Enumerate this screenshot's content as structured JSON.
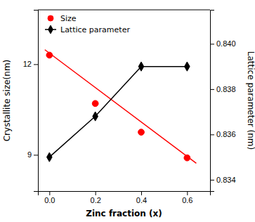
{
  "chart_data": {
    "type": "line",
    "xlabel": "Zinc fraction (x)",
    "ylabel": "Crystallite size(nm)",
    "y2label": "Lattice parameter (nm)",
    "xlim": [
      -0.05,
      0.7
    ],
    "xticks": [
      {
        "value": 0.0,
        "label": "0.0"
      },
      0.2,
      0.4,
      0.6
    ],
    "ylim": [
      7.8,
      13.8
    ],
    "yticks": [
      9,
      12
    ],
    "y2lim": [
      0.8335,
      0.8415
    ],
    "y2ticks": [
      0.834,
      0.836,
      0.838,
      {
        "value": 0.84,
        "label": "0.840"
      }
    ],
    "grid": false,
    "legend": "upper left",
    "series": [
      {
        "type": "line",
        "color": "#FF0000",
        "x": [
          -0.02,
          0.64
        ],
        "values": [
          12.48,
          8.72
        ]
      },
      {
        "name": "Size",
        "type": "scatter",
        "marker": "circle",
        "color": "#FF0000",
        "x": [
          0.0,
          0.2,
          0.4,
          0.6
        ],
        "values": [
          12.3,
          10.7,
          9.75,
          8.9
        ]
      },
      {
        "name": "Lattice parameter",
        "type": "line",
        "marker": "diamond",
        "axis": "y2",
        "color": "#000000",
        "x": [
          0.0,
          0.2,
          0.4,
          0.6
        ],
        "values": [
          0.835,
          0.8368,
          0.839,
          0.839
        ]
      }
    ]
  }
}
